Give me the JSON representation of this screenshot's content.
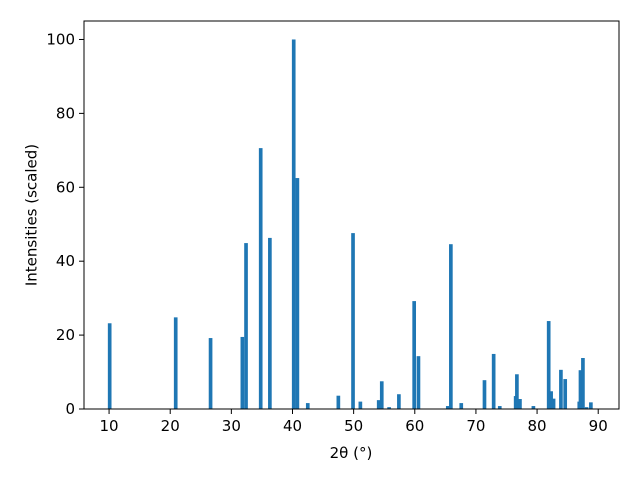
{
  "chart_data": {
    "type": "bar",
    "xlabel": "2θ (°)",
    "ylabel": "Intensities (scaled)",
    "color": "#1f77b4",
    "x": [
      10.1,
      20.9,
      26.6,
      31.8,
      32.4,
      34.8,
      36.3,
      40.2,
      40.8,
      42.5,
      47.5,
      49.9,
      51.1,
      54.1,
      54.6,
      55.8,
      57.4,
      59.9,
      60.6,
      65.4,
      65.9,
      67.6,
      71.4,
      72.9,
      73.9,
      76.5,
      76.7,
      77.2,
      79.4,
      81.9,
      82.3,
      82.7,
      83.9,
      84.6,
      86.9,
      87.1,
      87.5,
      88.1,
      88.8
    ],
    "values": [
      23.2,
      24.8,
      19.2,
      19.5,
      44.9,
      70.6,
      46.3,
      100,
      62.5,
      1.6,
      3.6,
      47.6,
      2.0,
      2.4,
      7.5,
      0.5,
      4.0,
      29.2,
      14.3,
      0.8,
      44.6,
      1.6,
      7.8,
      14.9,
      0.8,
      3.5,
      9.4,
      2.7,
      0.8,
      23.8,
      4.8,
      2.8,
      10.6,
      8.1,
      2.0,
      10.5,
      13.8,
      0.5,
      1.8
    ],
    "xlim": [
      5.9,
      93.4
    ],
    "ylim": [
      0,
      105
    ],
    "xticks": [
      10,
      20,
      30,
      40,
      50,
      60,
      70,
      80,
      90
    ],
    "yticks": [
      0,
      20,
      40,
      60,
      80,
      100
    ]
  }
}
